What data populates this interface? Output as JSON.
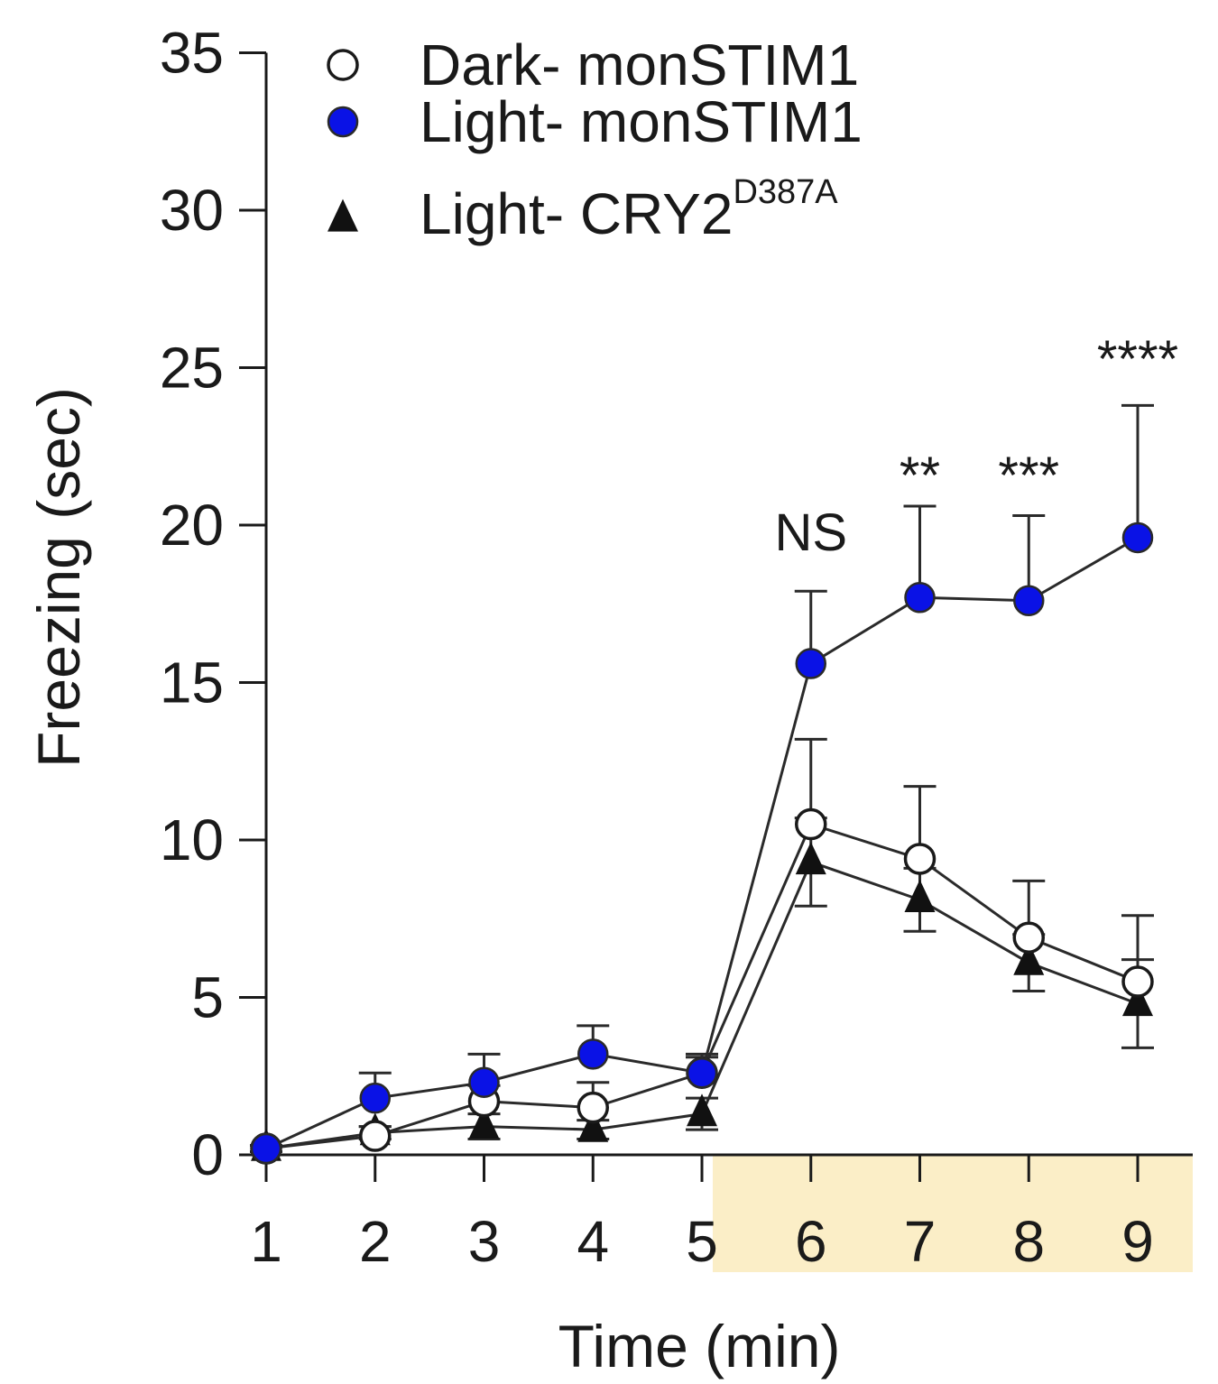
{
  "chart_data": {
    "type": "line",
    "xlabel": "Time (min)",
    "ylabel": "Freezing (sec)",
    "x": [
      1,
      2,
      3,
      4,
      5,
      6,
      7,
      8,
      9
    ],
    "xlim": [
      1,
      9
    ],
    "ylim": [
      0,
      35
    ],
    "yticks": [
      0,
      5,
      10,
      15,
      20,
      25,
      30,
      35
    ],
    "shaded_region": {
      "x_start": 5,
      "x_end": 9,
      "color": "#fbeec7"
    },
    "legend_position": "top",
    "series": [
      {
        "name": "Dark- monSTIM1",
        "marker": "open-circle",
        "color": "#ffffff",
        "values": [
          0.2,
          0.6,
          1.7,
          1.5,
          2.6,
          10.5,
          9.4,
          6.9,
          5.5
        ],
        "error": [
          0.1,
          0.3,
          0.5,
          0.8,
          0.5,
          2.7,
          2.3,
          1.8,
          2.1
        ]
      },
      {
        "name": "Light- monSTIM1",
        "marker": "filled-circle",
        "color": "#0a12e6",
        "values": [
          0.2,
          1.8,
          2.3,
          3.2,
          2.6,
          15.6,
          17.7,
          17.6,
          19.6
        ],
        "error": [
          0.1,
          0.8,
          0.9,
          0.9,
          0.6,
          2.3,
          2.9,
          2.7,
          4.2
        ]
      },
      {
        "name_main": "Light- CRY2",
        "name_sup": "D387A",
        "marker": "filled-triangle",
        "color": "#111111",
        "values": [
          0.2,
          0.7,
          0.9,
          0.8,
          1.3,
          9.3,
          8.1,
          6.1,
          4.8
        ],
        "error": [
          0.1,
          0.2,
          0.4,
          0.3,
          0.5,
          1.4,
          1.0,
          0.9,
          1.4
        ]
      }
    ],
    "annotations": [
      {
        "text": "NS",
        "x": 6,
        "y": 19.2,
        "size": "large"
      },
      {
        "text": "**",
        "x": 7,
        "y": 21.0,
        "size": "small"
      },
      {
        "text": "***",
        "x": 8,
        "y": 21.0,
        "size": "small"
      },
      {
        "text": "****",
        "x": 9,
        "y": 24.7,
        "size": "small"
      }
    ]
  }
}
